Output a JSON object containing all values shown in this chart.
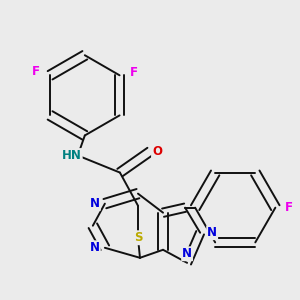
{
  "background_color": "#ebebeb",
  "atom_colors": {
    "C": "#000000",
    "N": "#0000dd",
    "O": "#dd0000",
    "S": "#bbaa00",
    "F": "#ee00ee",
    "H": "#008080"
  },
  "bond_color": "#111111",
  "bond_width": 1.4,
  "font_size": 8.5,
  "fig_width": 3.0,
  "fig_height": 3.0,
  "dpi": 100
}
